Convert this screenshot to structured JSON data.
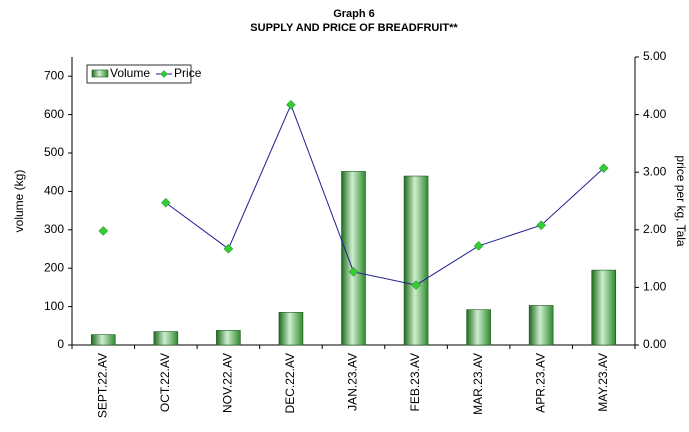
{
  "chart_data": {
    "type": "bar_line",
    "title": "Graph 6",
    "subtitle": "SUPPLY AND PRICE OF BREADFRUIT**",
    "ylabel": "volume (kg)",
    "y2label": "price per kg, Tala",
    "categories": [
      "SEPT.22.AV",
      "OCT.22.AV",
      "NOV.22.AV",
      "DEC.22.AV",
      "JAN.23.AV",
      "FEB.23.AV",
      "MAR.23.AV",
      "APR.23.AV",
      "MAY.23.AV"
    ],
    "series": [
      {
        "name": "Volume",
        "type": "bar",
        "color": "#3c9a3c",
        "values": [
          27,
          35,
          38,
          85,
          452,
          440,
          92,
          103,
          195
        ]
      },
      {
        "name": "Price",
        "type": "line",
        "axis": "y2",
        "color": "#1f1f8f",
        "marker_color": "#33cc33",
        "values": [
          1.98,
          2.47,
          1.67,
          4.17,
          1.27,
          1.04,
          1.72,
          2.08,
          3.07
        ]
      }
    ],
    "ylim": [
      0,
      750
    ],
    "yticks": [
      0,
      100,
      200,
      300,
      400,
      500,
      600,
      700
    ],
    "y2lim": [
      0,
      5
    ],
    "y2ticks": [
      {
        "value": 0,
        "label": "0.00"
      },
      {
        "value": 1,
        "label": "1.00"
      },
      {
        "value": 2,
        "label": "2.00"
      },
      {
        "value": 3,
        "label": "3.00"
      },
      {
        "value": 4,
        "label": "4.00"
      },
      {
        "value": 5,
        "label": "5.00"
      }
    ],
    "legend": "upper left",
    "grid": false
  }
}
